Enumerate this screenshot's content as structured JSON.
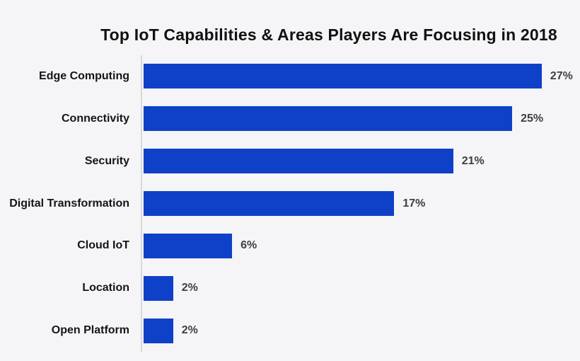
{
  "title": "Top IoT Capabilities & Areas Players Are Focusing in 2018",
  "colors": {
    "bar": "#0e41c8",
    "background": "#f5f4f6",
    "title_text": "#111111",
    "category_text": "#151515",
    "value_text": "#3f3f3f",
    "axis_line": "#d9d9d9"
  },
  "chart_data": {
    "type": "bar",
    "orientation": "horizontal",
    "title": "Top IoT Capabilities & Areas Players Are Focusing in 2018",
    "categories": [
      "Edge Computing",
      "Connectivity",
      "Security",
      "Digital Transformation",
      "Cloud IoT",
      "Location",
      "Open Platform"
    ],
    "values": [
      27,
      25,
      21,
      17,
      6,
      2,
      2
    ],
    "value_labels": [
      "27%",
      "25%",
      "21%",
      "17%",
      "6%",
      "2%",
      " 2%"
    ],
    "xlabel": "",
    "ylabel": "",
    "xlim": [
      0,
      29.6
    ],
    "grid": false,
    "legend": false,
    "value_labels_position": "end-of-bar"
  }
}
